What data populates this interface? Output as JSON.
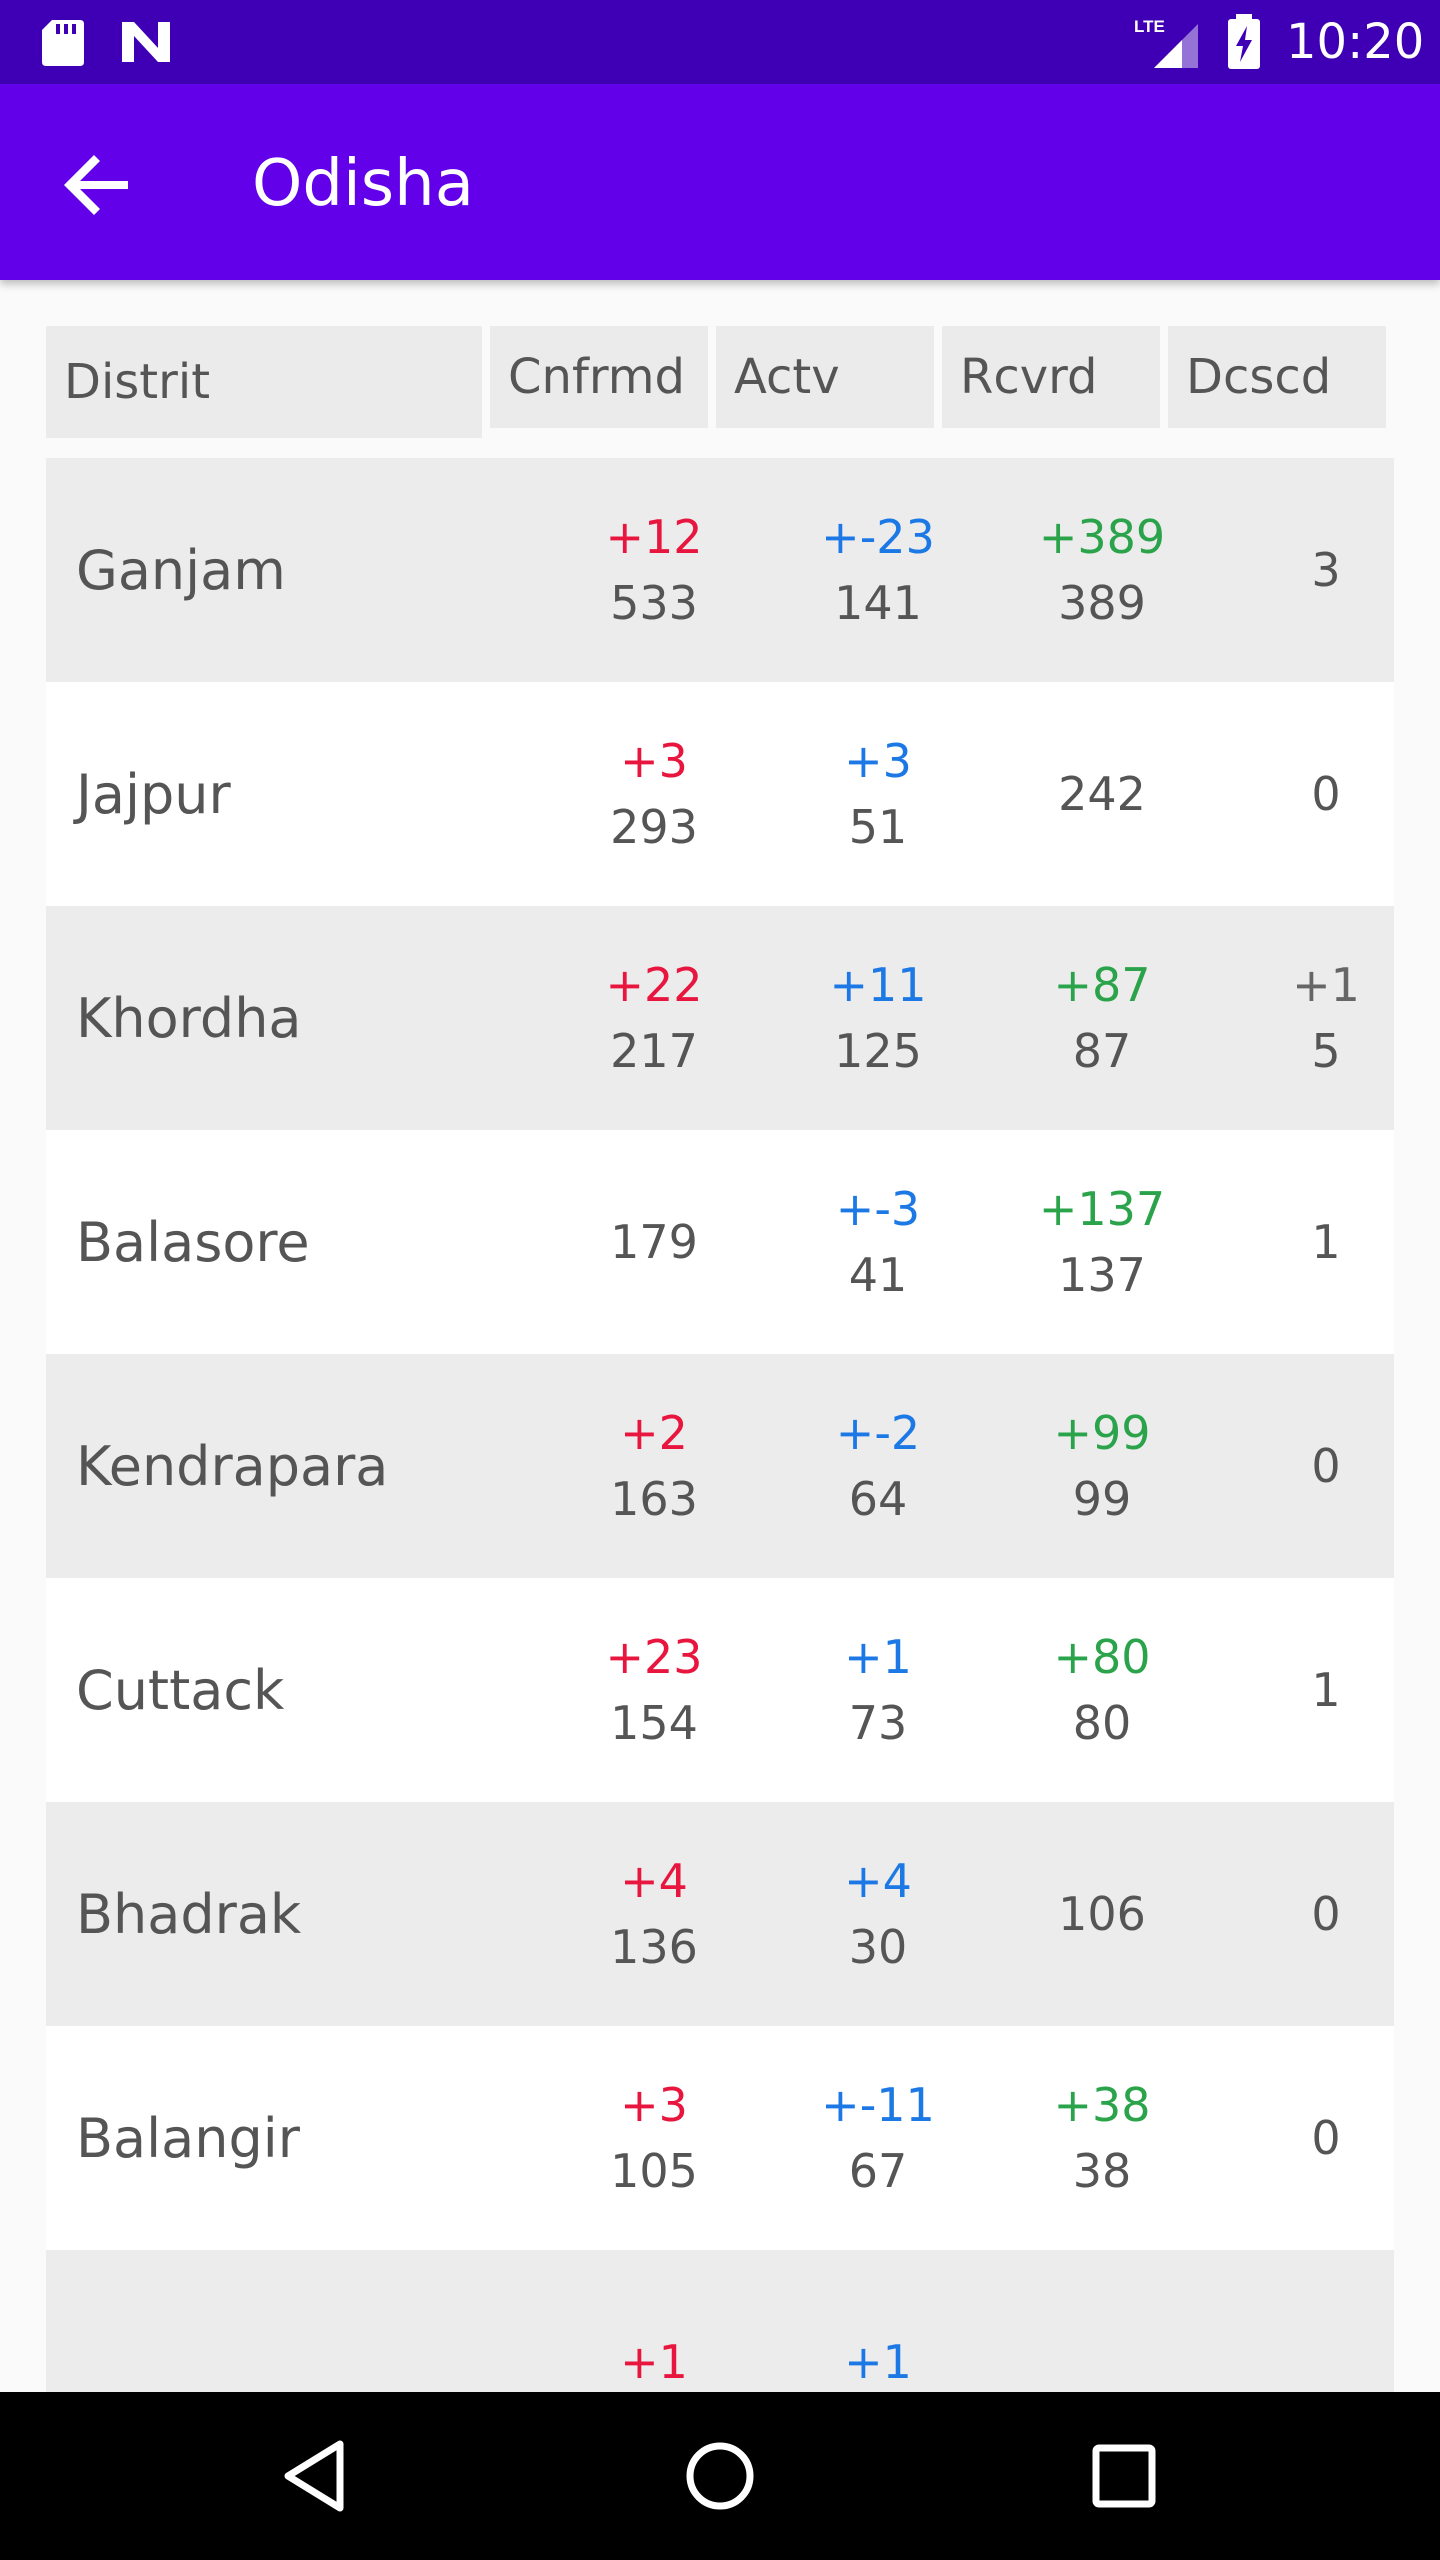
{
  "status_bar": {
    "time": "10:20",
    "network": "LTE"
  },
  "app_bar": {
    "title": "Odisha"
  },
  "table": {
    "headers": [
      "Distrit",
      "Cnfrmd",
      "Actv",
      "Rcvrd",
      "Dcscd"
    ],
    "rows": [
      {
        "district": "Ganjam",
        "confirmed_delta": "+12",
        "confirmed": "533",
        "active_delta": "+-23",
        "active": "141",
        "recovered_delta": "+389",
        "recovered": "389",
        "deceased_delta": "",
        "deceased": "3"
      },
      {
        "district": "Jajpur",
        "confirmed_delta": "+3",
        "confirmed": "293",
        "active_delta": "+3",
        "active": "51",
        "recovered_delta": "",
        "recovered": "242",
        "deceased_delta": "",
        "deceased": "0"
      },
      {
        "district": "Khordha",
        "confirmed_delta": "+22",
        "confirmed": "217",
        "active_delta": "+11",
        "active": "125",
        "recovered_delta": "+87",
        "recovered": "87",
        "deceased_delta": "+1",
        "deceased": "5"
      },
      {
        "district": "Balasore",
        "confirmed_delta": "",
        "confirmed": "179",
        "active_delta": "+-3",
        "active": "41",
        "recovered_delta": "+137",
        "recovered": "137",
        "deceased_delta": "",
        "deceased": "1"
      },
      {
        "district": "Kendrapara",
        "confirmed_delta": "+2",
        "confirmed": "163",
        "active_delta": "+-2",
        "active": "64",
        "recovered_delta": "+99",
        "recovered": "99",
        "deceased_delta": "",
        "deceased": "0"
      },
      {
        "district": "Cuttack",
        "confirmed_delta": "+23",
        "confirmed": "154",
        "active_delta": "+1",
        "active": "73",
        "recovered_delta": "+80",
        "recovered": "80",
        "deceased_delta": "",
        "deceased": "1"
      },
      {
        "district": "Bhadrak",
        "confirmed_delta": "+4",
        "confirmed": "136",
        "active_delta": "+4",
        "active": "30",
        "recovered_delta": "",
        "recovered": "106",
        "deceased_delta": "",
        "deceased": "0"
      },
      {
        "district": "Balangir",
        "confirmed_delta": "+3",
        "confirmed": "105",
        "active_delta": "+-11",
        "active": "67",
        "recovered_delta": "+38",
        "recovered": "38",
        "deceased_delta": "",
        "deceased": "0"
      },
      {
        "district": "",
        "confirmed_delta": "+1",
        "confirmed": "",
        "active_delta": "+1",
        "active": "",
        "recovered_delta": "",
        "recovered": "",
        "deceased_delta": "",
        "deceased": ""
      }
    ]
  },
  "colors": {
    "status_bar": "#3f00b5",
    "app_bar": "#6200ea",
    "confirmed_delta": "#e8163e",
    "active_delta": "#1c78e4",
    "recovered_delta": "#2aa34a"
  },
  "icons": {
    "status": [
      "sd-card-icon",
      "n-logo-icon",
      "lte-signal-icon",
      "battery-charging-icon"
    ],
    "app_bar": [
      "arrow-back-icon"
    ],
    "nav": [
      "nav-back-icon",
      "nav-home-icon",
      "nav-recents-icon"
    ]
  }
}
